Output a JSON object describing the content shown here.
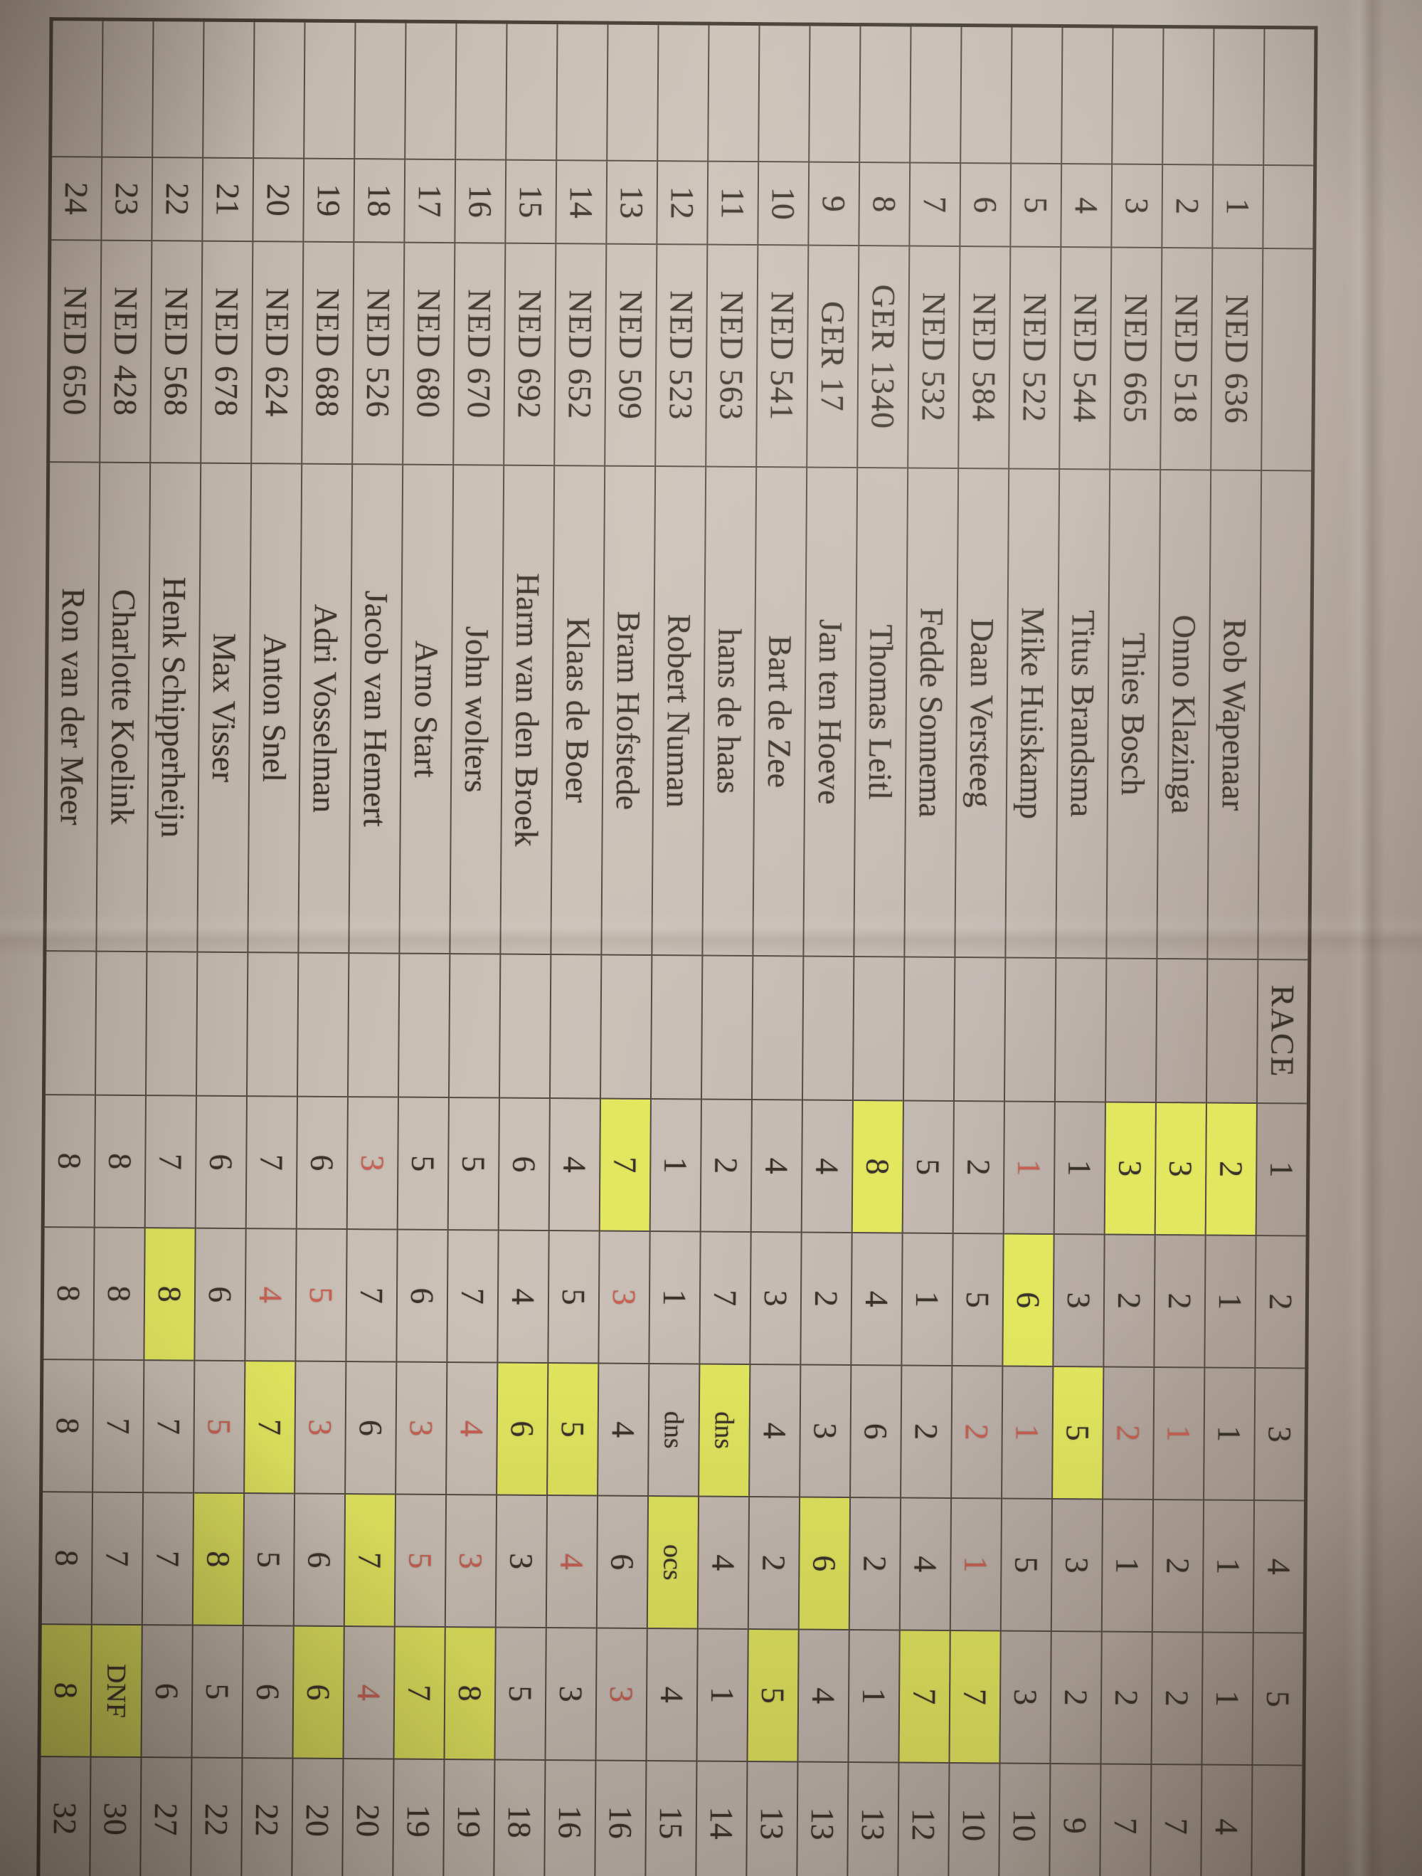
{
  "document": {
    "type": "photographed sailing race score sheet, paper rotated 90 degrees clockwise",
    "header": {
      "race_label": "RACE",
      "race_numbers": [
        "1",
        "2",
        "3",
        "4",
        "5"
      ]
    },
    "colors": {
      "highlight_yellow": "#e3e75f",
      "red_ink": "#c95f52",
      "ink": "#3a332b",
      "paper": "#cbc1b7",
      "grid_line": "#544c43"
    },
    "rows": [
      {
        "place": "1",
        "sail": "NED 636",
        "name": "Rob Wapenaar",
        "races": [
          {
            "v": "2",
            "discard": true
          },
          {
            "v": "1"
          },
          {
            "v": "1"
          },
          {
            "v": "1"
          },
          {
            "v": "1"
          }
        ],
        "total": "4"
      },
      {
        "place": "2",
        "sail": "NED 518",
        "name": "Onno Klazinga",
        "races": [
          {
            "v": "3",
            "discard": true
          },
          {
            "v": "2"
          },
          {
            "v": "1",
            "red": true
          },
          {
            "v": "2"
          },
          {
            "v": "2"
          }
        ],
        "total": "7"
      },
      {
        "place": "3",
        "sail": "NED 665",
        "name": "Thies Bosch",
        "races": [
          {
            "v": "3",
            "discard": true
          },
          {
            "v": "2"
          },
          {
            "v": "2",
            "red": true
          },
          {
            "v": "1"
          },
          {
            "v": "2"
          }
        ],
        "total": "7"
      },
      {
        "place": "4",
        "sail": "NED 544",
        "name": "Titus Brandsma",
        "races": [
          {
            "v": "1"
          },
          {
            "v": "3"
          },
          {
            "v": "5",
            "discard": true
          },
          {
            "v": "3"
          },
          {
            "v": "2"
          }
        ],
        "total": "9"
      },
      {
        "place": "5",
        "sail": "NED 522",
        "name": "Mike Huiskamp",
        "races": [
          {
            "v": "1",
            "red": true
          },
          {
            "v": "6",
            "discard": true
          },
          {
            "v": "1",
            "red": true
          },
          {
            "v": "5"
          },
          {
            "v": "3"
          }
        ],
        "total": "10"
      },
      {
        "place": "6",
        "sail": "NED 584",
        "name": "Daan Versteeg",
        "races": [
          {
            "v": "2"
          },
          {
            "v": "5"
          },
          {
            "v": "2",
            "red": true
          },
          {
            "v": "1",
            "red": true
          },
          {
            "v": "7",
            "discard": true
          }
        ],
        "total": "10"
      },
      {
        "place": "7",
        "sail": "NED 532",
        "name": "Fedde Sonnema",
        "races": [
          {
            "v": "5"
          },
          {
            "v": "1"
          },
          {
            "v": "2"
          },
          {
            "v": "4"
          },
          {
            "v": "7",
            "discard": true
          }
        ],
        "total": "12"
      },
      {
        "place": "8",
        "sail": "GER 1340",
        "name": "Thomas Leitl",
        "races": [
          {
            "v": "8",
            "discard": true
          },
          {
            "v": "4"
          },
          {
            "v": "6"
          },
          {
            "v": "2"
          },
          {
            "v": "1"
          }
        ],
        "total": "13"
      },
      {
        "place": "9",
        "sail": "GER 17",
        "name": "Jan ten Hoeve",
        "races": [
          {
            "v": "4"
          },
          {
            "v": "2"
          },
          {
            "v": "3"
          },
          {
            "v": "6",
            "discard": true
          },
          {
            "v": "4"
          }
        ],
        "total": "13"
      },
      {
        "place": "10",
        "sail": "NED 541",
        "name": "Bart de Zee",
        "races": [
          {
            "v": "4"
          },
          {
            "v": "3"
          },
          {
            "v": "4"
          },
          {
            "v": "2"
          },
          {
            "v": "5",
            "discard": true
          }
        ],
        "total": "13"
      },
      {
        "place": "11",
        "sail": "NED 563",
        "name": "hans de haas",
        "races": [
          {
            "v": "2"
          },
          {
            "v": "7"
          },
          {
            "v": "dns",
            "discard": true
          },
          {
            "v": "4"
          },
          {
            "v": "1"
          }
        ],
        "total": "14"
      },
      {
        "place": "12",
        "sail": "NED 523",
        "name": "Robert Numan",
        "races": [
          {
            "v": "1"
          },
          {
            "v": "1"
          },
          {
            "v": "dns"
          },
          {
            "v": "ocs",
            "discard": true
          },
          {
            "v": "4"
          }
        ],
        "total": "15"
      },
      {
        "place": "13",
        "sail": "NED 509",
        "name": "Bram Hofstede",
        "races": [
          {
            "v": "7",
            "discard": true
          },
          {
            "v": "3",
            "red": true
          },
          {
            "v": "4"
          },
          {
            "v": "6"
          },
          {
            "v": "3",
            "red": true
          }
        ],
        "total": "16"
      },
      {
        "place": "14",
        "sail": "NED 652",
        "name": "Klaas de Boer",
        "races": [
          {
            "v": "4"
          },
          {
            "v": "5"
          },
          {
            "v": "5",
            "discard": true
          },
          {
            "v": "4",
            "red": true
          },
          {
            "v": "3"
          }
        ],
        "total": "16"
      },
      {
        "place": "15",
        "sail": "NED 692",
        "name": "Harm van den Broek",
        "races": [
          {
            "v": "6"
          },
          {
            "v": "4"
          },
          {
            "v": "6",
            "discard": true
          },
          {
            "v": "3"
          },
          {
            "v": "5"
          }
        ],
        "total": "18"
      },
      {
        "place": "16",
        "sail": "NED 670",
        "name": "John wolters",
        "races": [
          {
            "v": "5"
          },
          {
            "v": "7"
          },
          {
            "v": "4",
            "red": true
          },
          {
            "v": "3",
            "red": true
          },
          {
            "v": "8",
            "discard": true
          }
        ],
        "total": "19"
      },
      {
        "place": "17",
        "sail": "NED 680",
        "name": "Arno Start",
        "races": [
          {
            "v": "5"
          },
          {
            "v": "6"
          },
          {
            "v": "3",
            "red": true
          },
          {
            "v": "5",
            "red": true
          },
          {
            "v": "7",
            "discard": true
          }
        ],
        "total": "19"
      },
      {
        "place": "18",
        "sail": "NED 526",
        "name": "Jacob van Hemert",
        "races": [
          {
            "v": "3",
            "red": true
          },
          {
            "v": "7"
          },
          {
            "v": "6"
          },
          {
            "v": "7",
            "discard": true
          },
          {
            "v": "4",
            "red": true
          }
        ],
        "total": "20"
      },
      {
        "place": "19",
        "sail": "NED 688",
        "name": "Adri Vosselman",
        "races": [
          {
            "v": "6"
          },
          {
            "v": "5",
            "red": true
          },
          {
            "v": "3",
            "red": true
          },
          {
            "v": "6"
          },
          {
            "v": "6",
            "discard": true
          }
        ],
        "total": "20"
      },
      {
        "place": "20",
        "sail": "NED 624",
        "name": "Anton Snel",
        "races": [
          {
            "v": "7"
          },
          {
            "v": "4",
            "red": true
          },
          {
            "v": "7",
            "discard": true
          },
          {
            "v": "5"
          },
          {
            "v": "6"
          }
        ],
        "total": "22"
      },
      {
        "place": "21",
        "sail": "NED 678",
        "name": "Max Visser",
        "races": [
          {
            "v": "6"
          },
          {
            "v": "6"
          },
          {
            "v": "5",
            "red": true
          },
          {
            "v": "8",
            "discard": true
          },
          {
            "v": "5"
          }
        ],
        "total": "22"
      },
      {
        "place": "22",
        "sail": "NED 568",
        "name": "Henk Schipperheijn",
        "races": [
          {
            "v": "7"
          },
          {
            "v": "8",
            "discard": true
          },
          {
            "v": "7"
          },
          {
            "v": "7"
          },
          {
            "v": "6"
          }
        ],
        "total": "27"
      },
      {
        "place": "23",
        "sail": "NED 428",
        "name": "Charlotte Koelink",
        "races": [
          {
            "v": "8"
          },
          {
            "v": "8"
          },
          {
            "v": "7"
          },
          {
            "v": "7"
          },
          {
            "v": "DNF",
            "discard": true
          }
        ],
        "total": "30"
      },
      {
        "place": "24",
        "sail": "NED 650",
        "name": "Ron van der Meer",
        "races": [
          {
            "v": "8"
          },
          {
            "v": "8"
          },
          {
            "v": "8"
          },
          {
            "v": "8"
          },
          {
            "v": "8",
            "discard": true
          }
        ],
        "total": "32"
      }
    ]
  }
}
